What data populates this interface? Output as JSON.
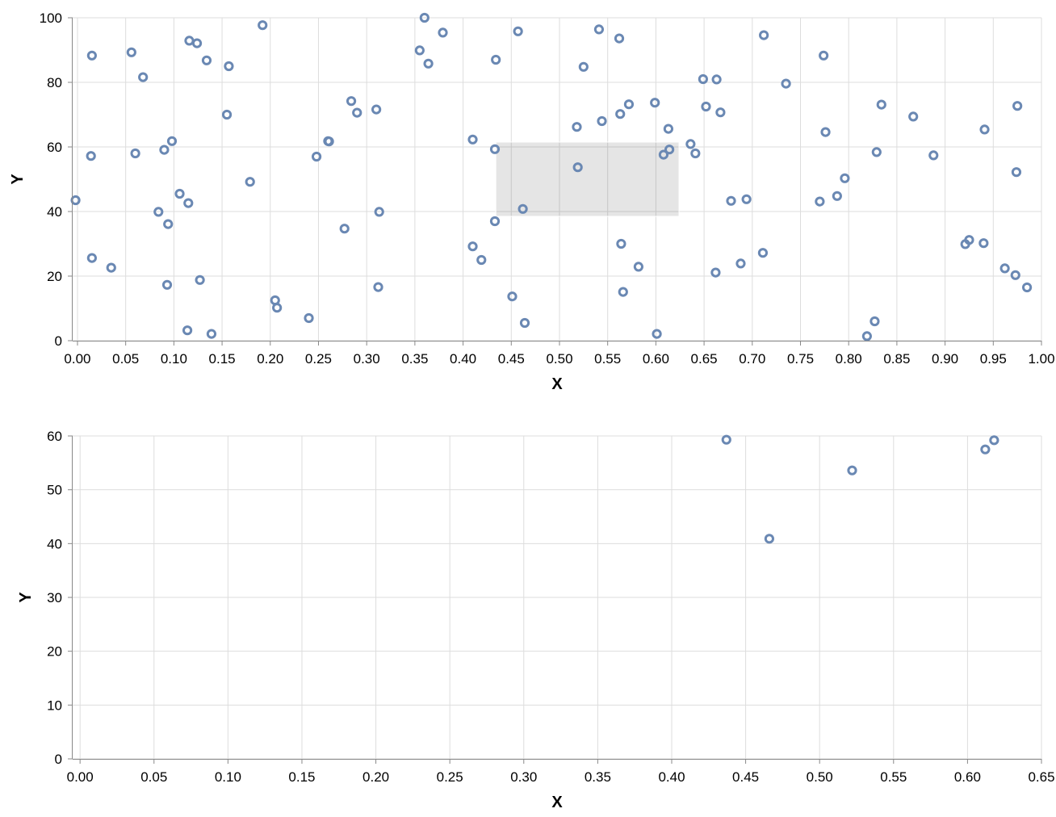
{
  "colors": {
    "point": "#6a88b3",
    "brush": "#dddddd",
    "grid": "#dddddd",
    "axis": "#888888"
  },
  "chart_data": [
    {
      "type": "scatter",
      "name": "overview",
      "xlabel": "X",
      "ylabel": "Y",
      "xlim": [
        -0.005,
        1.0
      ],
      "ylim": [
        0,
        100
      ],
      "x_ticks": [
        0.0,
        0.05,
        0.1,
        0.15,
        0.2,
        0.25,
        0.3,
        0.35,
        0.4,
        0.45,
        0.5,
        0.55,
        0.6,
        0.65,
        0.7,
        0.75,
        0.8,
        0.85,
        0.9,
        0.95,
        1.0
      ],
      "x_tick_labels": [
        "0.00",
        "0.05",
        "0.10",
        "0.15",
        "0.20",
        "0.25",
        "0.30",
        "0.35",
        "0.40",
        "0.45",
        "0.50",
        "0.55",
        "0.60",
        "0.65",
        "0.70",
        "0.75",
        "0.80",
        "0.85",
        "0.90",
        "0.95",
        "1.00"
      ],
      "y_ticks": [
        0,
        20,
        40,
        60,
        80,
        100
      ],
      "y_tick_labels": [
        "0",
        "20",
        "40",
        "60",
        "80",
        "100"
      ],
      "grid": true,
      "brush": {
        "x": [
          0.434,
          0.624
        ],
        "y": [
          38.5,
          61.5
        ]
      },
      "points": [
        {
          "x": -0.002,
          "y": 43.5
        },
        {
          "x": 0.014,
          "y": 57.2
        },
        {
          "x": 0.015,
          "y": 88.3
        },
        {
          "x": 0.015,
          "y": 25.6
        },
        {
          "x": 0.035,
          "y": 22.6
        },
        {
          "x": 0.056,
          "y": 89.3
        },
        {
          "x": 0.06,
          "y": 58.0
        },
        {
          "x": 0.068,
          "y": 81.6
        },
        {
          "x": 0.084,
          "y": 39.9
        },
        {
          "x": 0.09,
          "y": 59.1
        },
        {
          "x": 0.093,
          "y": 17.3
        },
        {
          "x": 0.094,
          "y": 36.1
        },
        {
          "x": 0.098,
          "y": 61.8
        },
        {
          "x": 0.106,
          "y": 45.5
        },
        {
          "x": 0.114,
          "y": 3.2
        },
        {
          "x": 0.115,
          "y": 42.6
        },
        {
          "x": 0.116,
          "y": 92.9
        },
        {
          "x": 0.124,
          "y": 92.1
        },
        {
          "x": 0.127,
          "y": 18.8
        },
        {
          "x": 0.134,
          "y": 86.8
        },
        {
          "x": 0.139,
          "y": 2.1
        },
        {
          "x": 0.155,
          "y": 70.0
        },
        {
          "x": 0.157,
          "y": 85.0
        },
        {
          "x": 0.179,
          "y": 49.2
        },
        {
          "x": 0.192,
          "y": 97.7
        },
        {
          "x": 0.205,
          "y": 12.5
        },
        {
          "x": 0.207,
          "y": 10.2
        },
        {
          "x": 0.24,
          "y": 7.0
        },
        {
          "x": 0.248,
          "y": 57.0
        },
        {
          "x": 0.26,
          "y": 61.8
        },
        {
          "x": 0.261,
          "y": 61.7
        },
        {
          "x": 0.277,
          "y": 34.7
        },
        {
          "x": 0.284,
          "y": 74.2
        },
        {
          "x": 0.29,
          "y": 70.6
        },
        {
          "x": 0.31,
          "y": 71.6
        },
        {
          "x": 0.312,
          "y": 16.6
        },
        {
          "x": 0.313,
          "y": 39.9
        },
        {
          "x": 0.355,
          "y": 89.9
        },
        {
          "x": 0.36,
          "y": 100.0
        },
        {
          "x": 0.364,
          "y": 85.8
        },
        {
          "x": 0.379,
          "y": 95.4
        },
        {
          "x": 0.41,
          "y": 29.2
        },
        {
          "x": 0.41,
          "y": 62.3
        },
        {
          "x": 0.419,
          "y": 25.0
        },
        {
          "x": 0.433,
          "y": 37.0
        },
        {
          "x": 0.433,
          "y": 59.3
        },
        {
          "x": 0.434,
          "y": 87.0
        },
        {
          "x": 0.451,
          "y": 13.7
        },
        {
          "x": 0.457,
          "y": 95.8
        },
        {
          "x": 0.462,
          "y": 40.8
        },
        {
          "x": 0.464,
          "y": 5.5
        },
        {
          "x": 0.518,
          "y": 66.2
        },
        {
          "x": 0.519,
          "y": 53.7
        },
        {
          "x": 0.525,
          "y": 84.8
        },
        {
          "x": 0.541,
          "y": 96.4
        },
        {
          "x": 0.544,
          "y": 68.0
        },
        {
          "x": 0.562,
          "y": 93.6
        },
        {
          "x": 0.563,
          "y": 70.2
        },
        {
          "x": 0.564,
          "y": 30.0
        },
        {
          "x": 0.566,
          "y": 15.1
        },
        {
          "x": 0.572,
          "y": 73.2
        },
        {
          "x": 0.582,
          "y": 22.9
        },
        {
          "x": 0.599,
          "y": 73.7
        },
        {
          "x": 0.601,
          "y": 2.1
        },
        {
          "x": 0.608,
          "y": 57.6
        },
        {
          "x": 0.613,
          "y": 65.6
        },
        {
          "x": 0.614,
          "y": 59.2
        },
        {
          "x": 0.636,
          "y": 60.9
        },
        {
          "x": 0.641,
          "y": 58.0
        },
        {
          "x": 0.649,
          "y": 81.0
        },
        {
          "x": 0.652,
          "y": 72.5
        },
        {
          "x": 0.662,
          "y": 21.1
        },
        {
          "x": 0.663,
          "y": 80.9
        },
        {
          "x": 0.667,
          "y": 70.7
        },
        {
          "x": 0.678,
          "y": 43.3
        },
        {
          "x": 0.688,
          "y": 23.9
        },
        {
          "x": 0.694,
          "y": 43.8
        },
        {
          "x": 0.711,
          "y": 27.2
        },
        {
          "x": 0.712,
          "y": 94.6
        },
        {
          "x": 0.735,
          "y": 79.6
        },
        {
          "x": 0.77,
          "y": 43.1
        },
        {
          "x": 0.774,
          "y": 88.3
        },
        {
          "x": 0.776,
          "y": 64.6
        },
        {
          "x": 0.788,
          "y": 44.8
        },
        {
          "x": 0.796,
          "y": 50.3
        },
        {
          "x": 0.819,
          "y": 1.4
        },
        {
          "x": 0.827,
          "y": 6.0
        },
        {
          "x": 0.829,
          "y": 58.4
        },
        {
          "x": 0.834,
          "y": 73.1
        },
        {
          "x": 0.867,
          "y": 69.4
        },
        {
          "x": 0.888,
          "y": 57.4
        },
        {
          "x": 0.921,
          "y": 29.9
        },
        {
          "x": 0.925,
          "y": 31.2
        },
        {
          "x": 0.94,
          "y": 30.2
        },
        {
          "x": 0.941,
          "y": 65.4
        },
        {
          "x": 0.962,
          "y": 22.4
        },
        {
          "x": 0.973,
          "y": 20.3
        },
        {
          "x": 0.974,
          "y": 52.2
        },
        {
          "x": 0.975,
          "y": 72.7
        },
        {
          "x": 0.985,
          "y": 16.5
        }
      ]
    },
    {
      "type": "scatter",
      "name": "detail",
      "xlabel": "X",
      "ylabel": "Y",
      "xlim": [
        -0.005,
        0.65
      ],
      "ylim": [
        0,
        60
      ],
      "x_ticks": [
        0.0,
        0.05,
        0.1,
        0.15,
        0.2,
        0.25,
        0.3,
        0.35,
        0.4,
        0.45,
        0.5,
        0.55,
        0.6,
        0.65
      ],
      "x_tick_labels": [
        "0.00",
        "0.05",
        "0.10",
        "0.15",
        "0.20",
        "0.25",
        "0.30",
        "0.35",
        "0.40",
        "0.45",
        "0.50",
        "0.55",
        "0.60",
        "0.65"
      ],
      "y_ticks": [
        0,
        10,
        20,
        30,
        40,
        50,
        60
      ],
      "y_tick_labels": [
        "0",
        "10",
        "20",
        "30",
        "40",
        "50",
        "60"
      ],
      "grid": true,
      "points": [
        {
          "x": 0.437,
          "y": 59.3
        },
        {
          "x": 0.466,
          "y": 40.9
        },
        {
          "x": 0.522,
          "y": 53.6
        },
        {
          "x": 0.612,
          "y": 57.5
        },
        {
          "x": 0.618,
          "y": 59.2
        }
      ]
    }
  ]
}
